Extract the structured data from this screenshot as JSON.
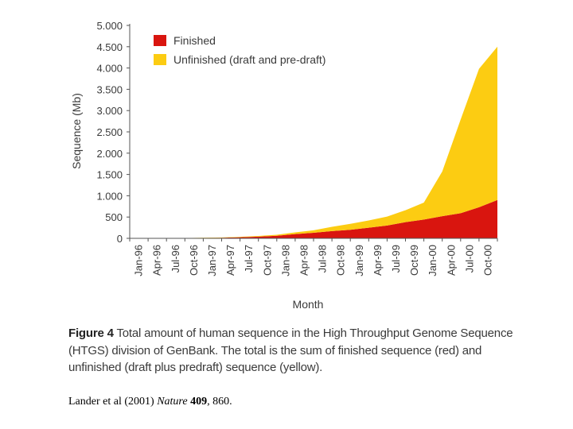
{
  "chart_data": {
    "type": "area",
    "stacked": true,
    "ylabel": "Sequence (Mb)",
    "xlabel": "Month",
    "ylim": [
      0,
      5000
    ],
    "yticks": [
      0,
      500,
      1000,
      1500,
      2000,
      2500,
      3000,
      3500,
      4000,
      4500,
      5000
    ],
    "ytick_labels": [
      "0",
      "500",
      "1.000",
      "1.500",
      "2.000",
      "2.500",
      "3.000",
      "3.500",
      "4.000",
      "4.500",
      "5.000"
    ],
    "x_tick_labels": [
      "Jan-96",
      "Apr-96",
      "Jul-96",
      "Oct-96",
      "Jan-97",
      "Apr-97",
      "Jul-97",
      "Oct-97",
      "Jan-98",
      "Apr-98",
      "Jul-98",
      "Oct-98",
      "Jan-99",
      "Apr-99",
      "Jul-99",
      "Oct-99",
      "Jan-00",
      "Apr-00",
      "Jul-00",
      "Oct-00"
    ],
    "legend_position": "top-left",
    "series": [
      {
        "name": "Finished",
        "color": "#d9150f",
        "values": [
          0,
          2,
          5,
          10,
          15,
          25,
          40,
          60,
          100,
          130,
          170,
          200,
          250,
          300,
          380,
          440,
          520,
          590,
          730,
          900
        ]
      },
      {
        "name": "Unfinished (draft and pre-draft)",
        "color": "#fccc12",
        "values": [
          0,
          1,
          2,
          4,
          6,
          10,
          15,
          25,
          40,
          60,
          100,
          140,
          170,
          210,
          280,
          400,
          1050,
          2200,
          3250,
          3600
        ]
      }
    ]
  },
  "caption": {
    "figure_label": "Figure 4",
    "text": " Total amount of human sequence in the High Throughput Genome Sequence (HTGS) division of GenBank. The total is the sum of finished sequence (red) and unfinished (draft plus predraft) sequence (yellow)."
  },
  "citation": {
    "authors": "Lander et al (2001) ",
    "journal": "Nature",
    "volume": " 409",
    "pages": ", 860."
  }
}
